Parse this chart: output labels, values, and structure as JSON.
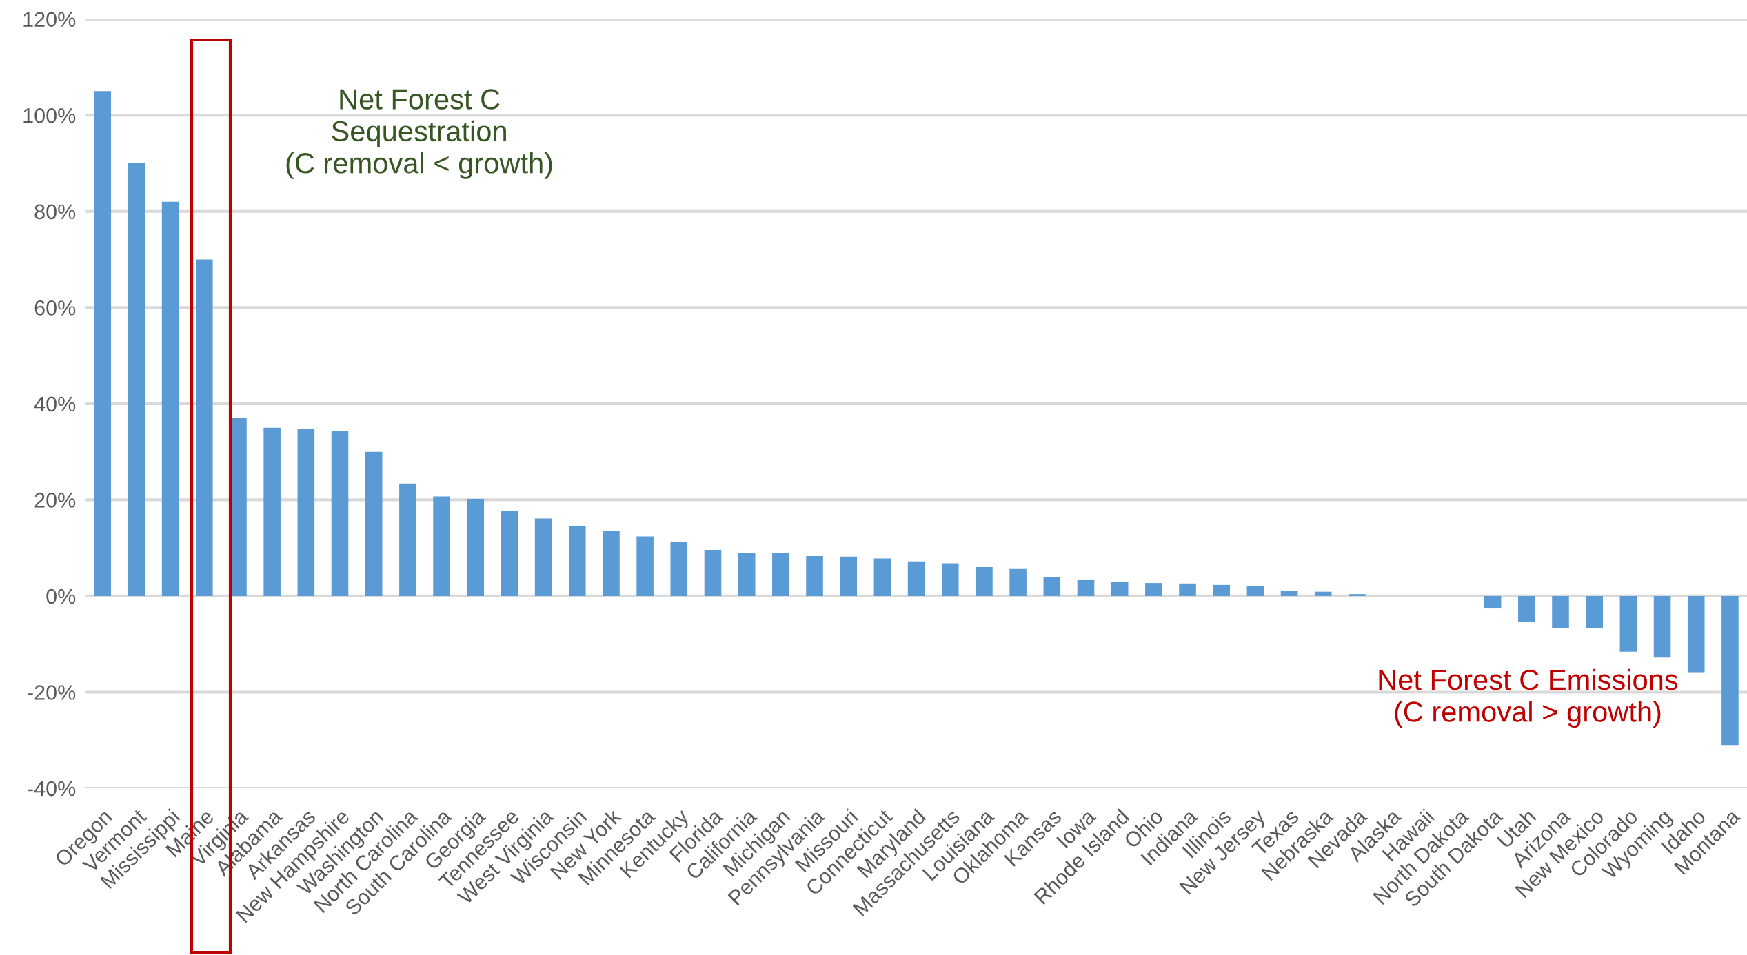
{
  "chart_data": {
    "type": "bar",
    "categories": [
      "Oregon",
      "Vermont",
      "Mississippi",
      "Maine",
      "Virginia",
      "Alabama",
      "Arkansas",
      "New Hampshire",
      "Washington",
      "North Carolina",
      "South Carolina",
      "Georgia",
      "Tennessee",
      "West Virginia",
      "Wisconsin",
      "New York",
      "Minnesota",
      "Kentucky",
      "Florida",
      "California",
      "Michigan",
      "Pennsylvania",
      "Missouri",
      "Connecticut",
      "Maryland",
      "Massachusetts",
      "Louisiana",
      "Oklahoma",
      "Kansas",
      "Iowa",
      "Rhode Island",
      "Ohio",
      "Indiana",
      "Illinois",
      "New Jersey",
      "Texas",
      "Nebraska",
      "Nevada",
      "Alaska",
      "Hawaii",
      "North Dakota",
      "South Dakota",
      "Utah",
      "Arizona",
      "New Mexico",
      "Colorado",
      "Wyoming",
      "Idaho",
      "Montana"
    ],
    "values": [
      105,
      90,
      82,
      70,
      37,
      35,
      34.7,
      34.3,
      30,
      23.4,
      20.7,
      20.2,
      17.7,
      16.1,
      14.5,
      13.5,
      12.4,
      11.3,
      9.6,
      8.9,
      8.9,
      8.3,
      8.2,
      7.8,
      7.2,
      6.8,
      6.0,
      5.6,
      4.0,
      3.3,
      3.0,
      2.7,
      2.6,
      2.3,
      2.1,
      1.1,
      0.9,
      0.4,
      null,
      null,
      null,
      -2.6,
      -5.4,
      -6.6,
      -6.7,
      -11.6,
      -12.8,
      -16,
      -31
    ],
    "color": "#5b9bd5",
    "ylim": [
      -40,
      120
    ],
    "yticks": [
      {
        "value": -40,
        "label": "-40%"
      },
      {
        "value": -20,
        "label": "-20%"
      },
      {
        "value": 0,
        "label": "0%"
      },
      {
        "value": 20,
        "label": "20%"
      },
      {
        "value": 40,
        "label": "40%"
      },
      {
        "value": 60,
        "label": "60%"
      },
      {
        "value": 80,
        "label": "80%"
      },
      {
        "value": 100,
        "label": "100%"
      },
      {
        "value": 120,
        "label": "120%"
      }
    ],
    "grid": "y",
    "annotations": [
      "Net Forest C\nSequestration\n(C removal < growth)",
      "Net Forest C Emissions\n(C removal > growth)"
    ]
  }
}
